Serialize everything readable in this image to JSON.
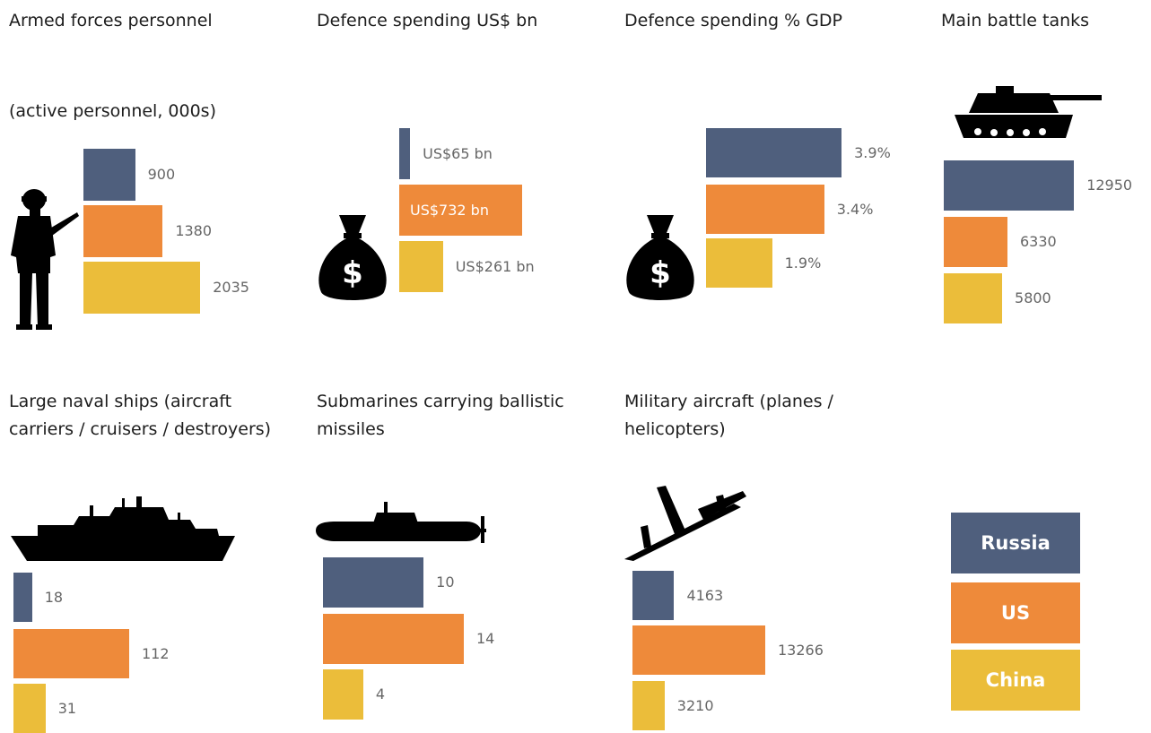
{
  "colors": {
    "Russia": "#4f5f7d",
    "US": "#ee8a3a",
    "China": "#ebbd3a"
  },
  "legend": [
    "Russia",
    "US",
    "China"
  ],
  "chart_data": [
    {
      "type": "bar",
      "title": "Armed forces personnel",
      "subtitle": "(active personnel, 000s)",
      "categories": [
        "Russia",
        "US",
        "China"
      ],
      "values": [
        900,
        1380,
        2035
      ],
      "labels": [
        "900",
        "1380",
        "2035"
      ],
      "icon": "soldier-icon"
    },
    {
      "type": "bar",
      "title": "Defence spending US$ bn",
      "subtitle": "",
      "categories": [
        "Russia",
        "US",
        "China"
      ],
      "values": [
        65,
        732,
        261
      ],
      "labels": [
        "US$65 bn",
        "US$732 bn",
        "US$261 bn"
      ],
      "icon": "money-bag-icon"
    },
    {
      "type": "bar",
      "title": "Defence spending % GDP",
      "subtitle": "",
      "categories": [
        "Russia",
        "US",
        "China"
      ],
      "values": [
        3.9,
        3.4,
        1.9
      ],
      "labels": [
        "3.9%",
        "3.4%",
        "1.9%"
      ],
      "icon": "money-bag-icon"
    },
    {
      "type": "bar",
      "title": "Main battle tanks",
      "subtitle": "",
      "categories": [
        "Russia",
        "US",
        "China"
      ],
      "values": [
        12950,
        6330,
        5800
      ],
      "labels": [
        "12950",
        "6330",
        "5800"
      ],
      "icon": "tank-icon"
    },
    {
      "type": "bar",
      "title": "Large naval ships (aircraft carriers / cruisers / destroyers)",
      "subtitle": "",
      "categories": [
        "Russia",
        "US",
        "China"
      ],
      "values": [
        18,
        112,
        31
      ],
      "labels": [
        "18",
        "112",
        "31"
      ],
      "icon": "warship-icon"
    },
    {
      "type": "bar",
      "title": "Submarines carrying ballistic missiles",
      "subtitle": "",
      "categories": [
        "Russia",
        "US",
        "China"
      ],
      "values": [
        10,
        14,
        4
      ],
      "labels": [
        "10",
        "14",
        "4"
      ],
      "icon": "submarine-icon"
    },
    {
      "type": "bar",
      "title": "Military aircraft (planes / helicopters)",
      "subtitle": "",
      "categories": [
        "Russia",
        "US",
        "China"
      ],
      "values": [
        4163,
        13266,
        3210
      ],
      "labels": [
        "4163",
        "13266",
        "3210"
      ],
      "icon": "aircraft-icon"
    }
  ]
}
